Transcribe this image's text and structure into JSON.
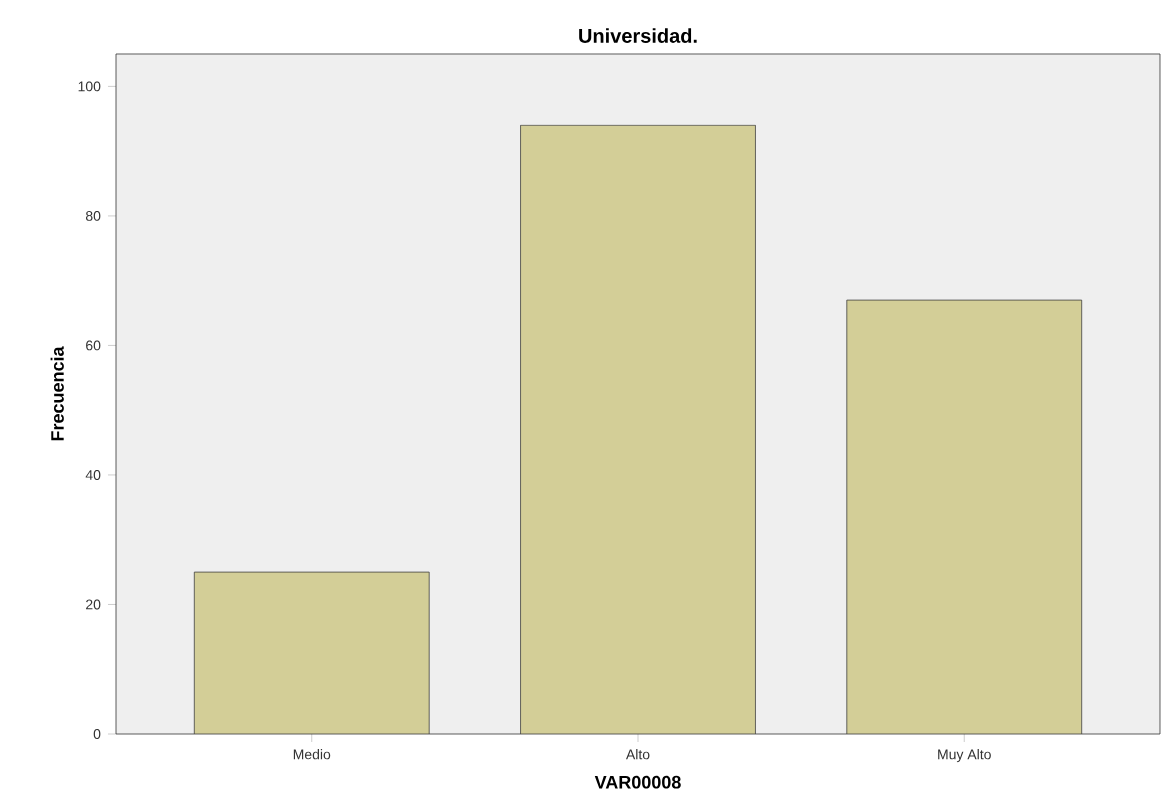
{
  "chart_data": {
    "type": "bar",
    "title": "Universidad.",
    "xlabel": "VAR00008",
    "ylabel": "Frecuencia",
    "categories": [
      "Medio",
      "Alto",
      "Muy Alto"
    ],
    "values": [
      25,
      94,
      67
    ],
    "color": "#d3ce97",
    "ylim": [
      0,
      105
    ],
    "yticks": [
      0,
      20,
      40,
      60,
      80,
      100
    ],
    "grid": false
  }
}
